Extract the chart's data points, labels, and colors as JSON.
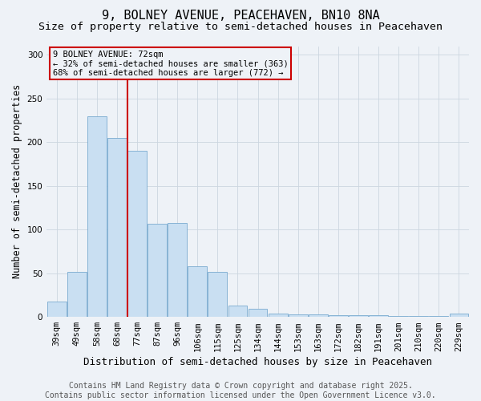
{
  "title": "9, BOLNEY AVENUE, PEACEHAVEN, BN10 8NA",
  "subtitle": "Size of property relative to semi-detached houses in Peacehaven",
  "xlabel": "Distribution of semi-detached houses by size in Peacehaven",
  "ylabel": "Number of semi-detached properties",
  "property_label": "9 BOLNEY AVENUE: 72sqm",
  "pct_smaller": 32,
  "pct_larger": 68,
  "n_smaller": 363,
  "n_larger": 772,
  "bar_color": "#c9dff2",
  "bar_edge_color": "#7aaacf",
  "vline_color": "#cc0000",
  "annotation_box_color": "#cc0000",
  "background_color": "#eef2f7",
  "categories": [
    "39sqm",
    "49sqm",
    "58sqm",
    "68sqm",
    "77sqm",
    "87sqm",
    "96sqm",
    "106sqm",
    "115sqm",
    "125sqm",
    "134sqm",
    "144sqm",
    "153sqm",
    "163sqm",
    "172sqm",
    "182sqm",
    "191sqm",
    "201sqm",
    "210sqm",
    "220sqm",
    "229sqm"
  ],
  "values": [
    18,
    52,
    230,
    205,
    190,
    107,
    108,
    58,
    52,
    13,
    9,
    4,
    3,
    3,
    2,
    2,
    2,
    1,
    1,
    1,
    4
  ],
  "ylim": [
    0,
    310
  ],
  "vline_index": 3.5,
  "footer_line1": "Contains HM Land Registry data © Crown copyright and database right 2025.",
  "footer_line2": "Contains public sector information licensed under the Open Government Licence v3.0.",
  "grid_color": "#ccd6e0",
  "title_fontsize": 11,
  "subtitle_fontsize": 9.5,
  "xlabel_fontsize": 9,
  "ylabel_fontsize": 8.5,
  "tick_fontsize": 7.5,
  "footer_fontsize": 7,
  "ann_fontsize": 7.5
}
